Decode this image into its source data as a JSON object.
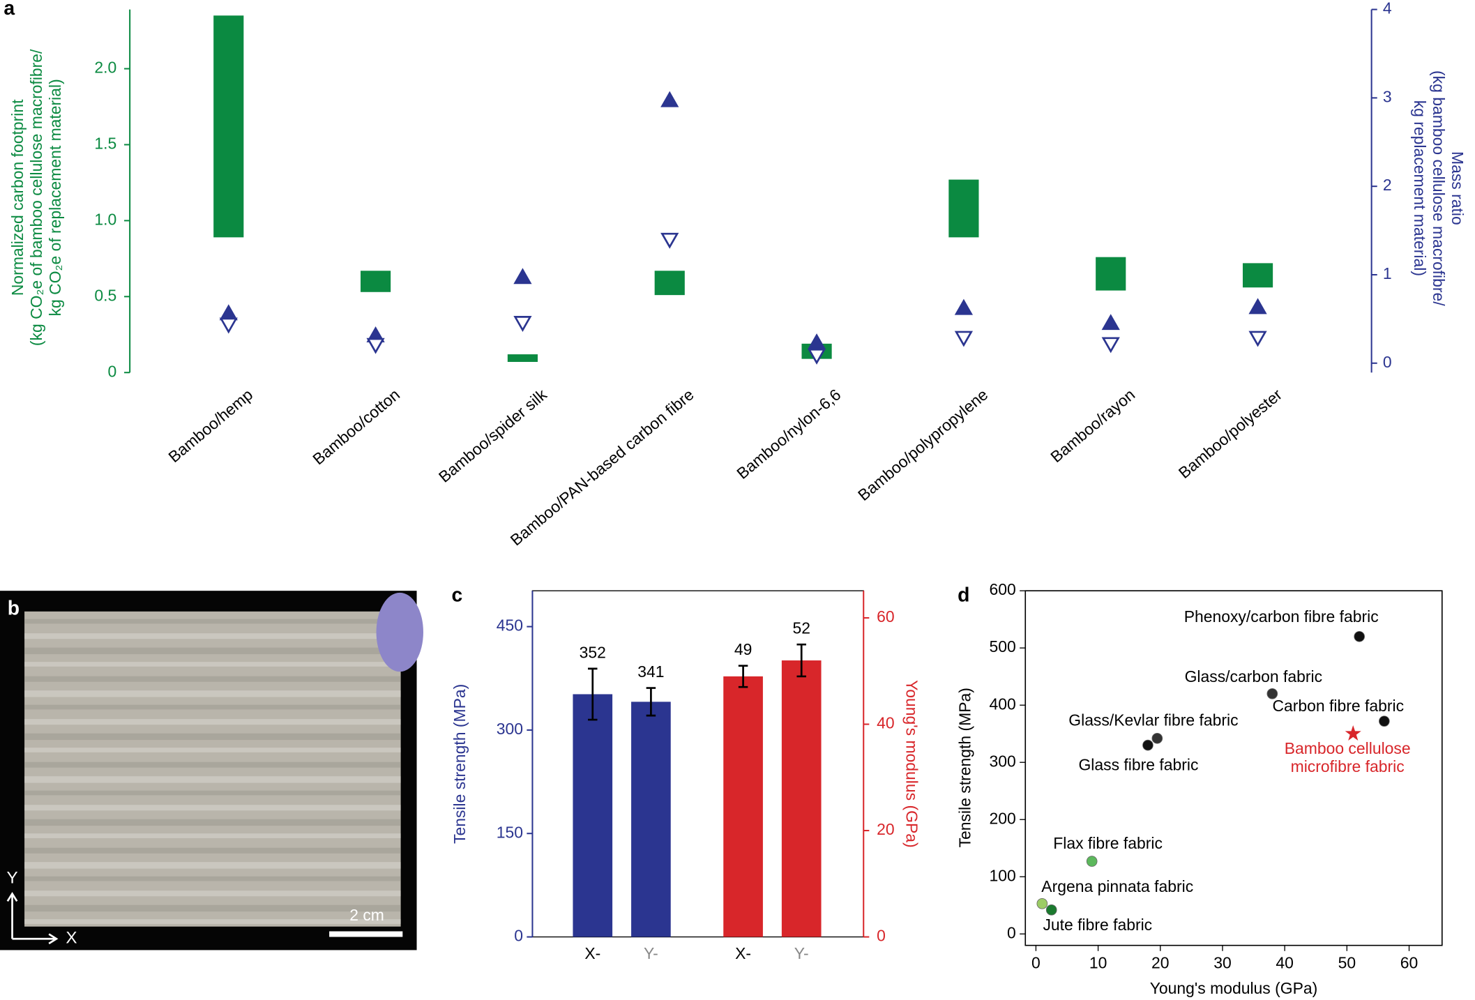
{
  "chart_data": [
    {
      "type": "range-bar",
      "panel": "a",
      "categories": [
        "Bamboo/hemp",
        "Bamboo/cotton",
        "Bamboo/spider silk",
        "Bamboo/PAN-based carbon fibre",
        "Bamboo/nylon-6,6",
        "Bamboo/polypropylene",
        "Bamboo/rayon",
        "Bamboo/polyester"
      ],
      "ylabel": [
        "Normalized carbon footprint",
        "(kg CO₂e of bamboo cellulose macrofibre/",
        "kg CO₂e of replacement material)"
      ],
      "y2label": [
        "Mass ratio",
        "(kg bamboo cellulose macrofibre/",
        "kg replacement material)"
      ],
      "ylim": [
        0,
        2.39
      ],
      "yticks": [
        0,
        0.5,
        {
          "value": 1,
          "label": "1.0"
        },
        1.5,
        {
          "value": 2,
          "label": "2.0"
        }
      ],
      "y2lim": [
        -0.106,
        4
      ],
      "y2ticks": [
        0,
        1,
        2,
        3,
        4
      ],
      "series": [
        {
          "color": "#0b8a41",
          "low": [
            0.89,
            0.53,
            0.07,
            0.51,
            0.09,
            0.89,
            0.54,
            0.56
          ],
          "high": [
            2.35,
            0.67,
            0.12,
            0.67,
            0.19,
            1.27,
            0.76,
            0.72
          ]
        },
        {
          "color": "#2b3590",
          "axis": "y2",
          "marker": "triangle-up",
          "values": [
            0.56,
            0.31,
            0.97,
            2.97,
            0.23,
            0.62,
            0.45,
            0.63
          ]
        },
        {
          "color": "#2b3590",
          "axis": "y2",
          "marker": "triangle-down",
          "values": [
            0.44,
            0.21,
            0.46,
            1.4,
            0.09,
            0.29,
            0.22,
            0.29
          ]
        }
      ]
    },
    {
      "type": "bar",
      "panel": "c",
      "categories": [
        "X-",
        "Y-",
        "X-",
        "Y-"
      ],
      "category_colors": [
        "#000000",
        "#888888",
        "#000000",
        "#888888"
      ],
      "ylabel": "Tensile strength (MPa)",
      "y2label": "Young's modulus (GPa)",
      "ylim": [
        0,
        502
      ],
      "yticks": [
        0,
        150,
        300,
        450
      ],
      "y2lim": [
        0,
        65.1
      ],
      "y2ticks": [
        0,
        20,
        40,
        60
      ],
      "series": [
        {
          "color": "#2b3590",
          "values": [
            352,
            341,
            null,
            null
          ],
          "errors": [
            37,
            20,
            null,
            null
          ]
        },
        {
          "color": "#d8262a",
          "axis": "y2",
          "values": [
            null,
            null,
            49,
            52
          ],
          "errors": [
            null,
            null,
            2,
            3
          ]
        }
      ]
    },
    {
      "type": "scatter",
      "panel": "d",
      "xlabel": "Young's modulus (GPa)",
      "ylabel": "Tensile strength (MPa)",
      "xlim": [
        -1.7,
        65.3
      ],
      "xticks": [
        0,
        10,
        20,
        30,
        40,
        50,
        60
      ],
      "ylim": [
        -20,
        600
      ],
      "yticks": [
        0,
        100,
        200,
        300,
        400,
        500,
        600
      ],
      "points": [
        {
          "label": "Phenoxy/carbon fibre fabric",
          "x": 52,
          "y": 520,
          "color": "#111111",
          "marker": "circle"
        },
        {
          "label": "Glass/carbon fabric",
          "x": 38,
          "y": 420,
          "color": "#333333",
          "marker": "circle"
        },
        {
          "label": "Carbon fibre fabric",
          "x": 56,
          "y": 372,
          "color": "#111111",
          "marker": "circle"
        },
        {
          "label": "Glass/Kevlar fibre fabric",
          "x": 19.5,
          "y": 342,
          "color": "#333333",
          "marker": "circle"
        },
        {
          "label": "Glass fibre fabric",
          "x": 18,
          "y": 330,
          "color": "#111111",
          "marker": "circle"
        },
        {
          "label": [
            "Bamboo cellulose",
            "microfibre fabric"
          ],
          "x": 51,
          "y": 350,
          "color": "#d8262a",
          "marker": "star"
        },
        {
          "label": "Flax fibre fabric",
          "x": 9,
          "y": 127,
          "color": "#5cb85c",
          "marker": "circle"
        },
        {
          "label": "Argena pinnata fabric",
          "x": 1,
          "y": 53,
          "color": "#9ccc65",
          "marker": "circle"
        },
        {
          "label": "Jute fibre fabric",
          "x": 2.5,
          "y": 42,
          "color": "#1b7a2e",
          "marker": "circle"
        }
      ]
    }
  ],
  "photo": {
    "panel": "b",
    "scale_label": "2 cm",
    "axis_y": "Y",
    "axis_x": "X"
  }
}
